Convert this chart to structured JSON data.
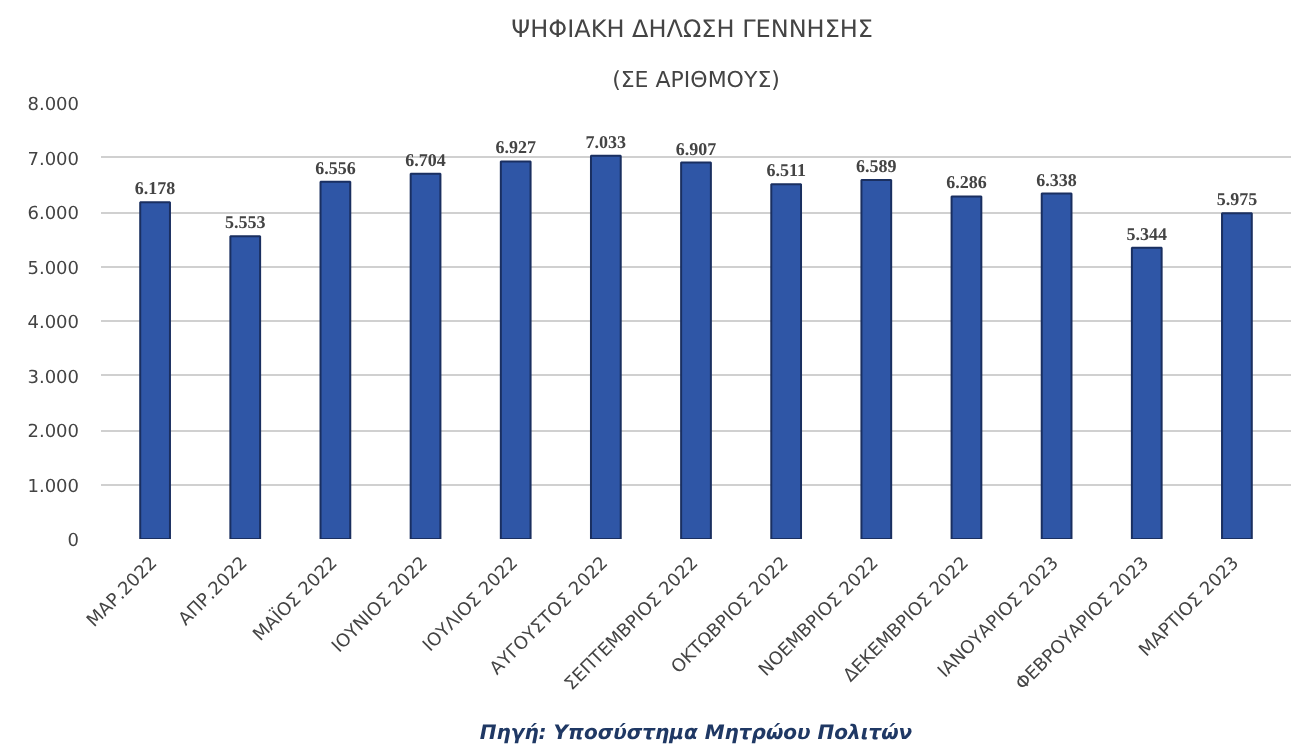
{
  "chart_data": {
    "type": "bar",
    "title": "ΨΗΦΙΑΚΗ ΔΗΛΩΣΗ  ΓΕΝΝΗΣΗΣ",
    "subtitle": "(ΣΕ ΑΡΙΘΜΟΥΣ)",
    "categories": [
      "ΜΑΡ.2022",
      "ΑΠΡ.2022",
      "ΜΑΪΟΣ 2022",
      "ΙΟΥΝΙΟΣ 2022",
      "ΙΟΥΛΙΟΣ 2022",
      "ΑΥΓΟΥΣΤΟΣ 2022",
      "ΣΕΠΤΕΜΒΡΙΟΣ 2022",
      "ΟΚΤΩΒΡΙΟΣ 2022",
      "ΝΟΕΜΒΡΙΟΣ 2022",
      "ΔΕΚΕΜΒΡΙΟΣ 2022",
      "ΙΑΝΟΥΑΡΙΟΣ 2023",
      "ΦΕΒΡΟΥΑΡΙΟΣ 2023",
      "ΜΑΡΤΙΟΣ 2023"
    ],
    "values": [
      6178,
      5553,
      6556,
      6704,
      6927,
      7033,
      6907,
      6511,
      6589,
      6286,
      6338,
      5344,
      5975
    ],
    "value_labels": [
      "6.178",
      "5.553",
      "6.556",
      "6.704",
      "6.927",
      "7.033",
      "6.907",
      "6.511",
      "6.589",
      "6.286",
      "6.338",
      "5.344",
      "5.975"
    ],
    "color": "#2f56a6",
    "ylim": [
      0,
      8000
    ],
    "yticks": [
      0,
      {
        "value": 1000,
        "label": "1.000"
      },
      {
        "value": 2000,
        "label": "2.000"
      },
      {
        "value": 3000,
        "label": "3.000"
      },
      {
        "value": 4000,
        "label": "4.000"
      },
      {
        "value": 5000,
        "label": "5.000"
      },
      {
        "value": 6000,
        "label": "6.000"
      },
      {
        "value": 7000,
        "label": "7.000"
      },
      {
        "value": 8000,
        "label": "8.000"
      }
    ],
    "grid": "y",
    "annotations": [
      "Πηγή: Υποσύστημα Μητρώου Πολιτών"
    ]
  }
}
